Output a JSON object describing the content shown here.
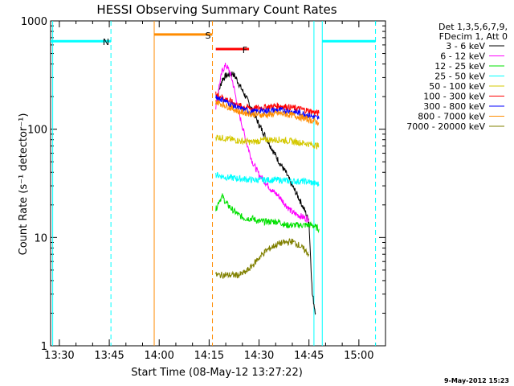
{
  "chart_data": {
    "type": "line",
    "title": "HESSI Observing Summary Count Rates",
    "xlabel": "Start Time (08-May-12 13:27:22)",
    "ylabel": "Count Rate (s⁻¹ detector⁻¹)",
    "yscale": "log",
    "ylim": [
      1,
      1000
    ],
    "xlim": [
      "13:27:22",
      "15:08:00"
    ],
    "x_ticks": [
      "13:30",
      "13:45",
      "14:00",
      "14:15",
      "14:30",
      "14:45",
      "15:00"
    ],
    "y_ticks": [
      "1",
      "10",
      "100",
      "1000"
    ],
    "legend": {
      "placement": "right",
      "header": [
        "Det 1,3,5,6,7,9,",
        "FDecim 1, Att 0"
      ],
      "entries": [
        {
          "label": "3 - 6 keV",
          "color": "#000000"
        },
        {
          "label": "6 - 12 keV",
          "color": "#ff00ff"
        },
        {
          "label": "12 - 25 keV",
          "color": "#00e000"
        },
        {
          "label": "25 - 50 keV",
          "color": "#00ffff"
        },
        {
          "label": "50 - 100 keV",
          "color": "#d4c800"
        },
        {
          "label": "100 - 300 keV",
          "color": "#ff0000"
        },
        {
          "label": "300 - 800 keV",
          "color": "#0000ff"
        },
        {
          "label": "800 - 7000 keV",
          "color": "#ff8c00"
        },
        {
          "label": "7000 - 20000 keV",
          "color": "#808000"
        }
      ]
    },
    "series": [
      {
        "name": "3 - 6 keV",
        "color": "#000000",
        "x": [
          "14:17",
          "14:18",
          "14:19",
          "14:20",
          "14:21",
          "14:22",
          "14:23",
          "14:24",
          "14:26",
          "14:28",
          "14:30",
          "14:32",
          "14:34",
          "14:36",
          "14:38",
          "14:40",
          "14:42",
          "14:44",
          "14:45",
          "14:46",
          "14:47"
        ],
        "y": [
          170,
          230,
          290,
          310,
          320,
          330,
          300,
          260,
          200,
          150,
          110,
          85,
          65,
          50,
          40,
          30,
          23,
          17,
          14,
          3,
          2
        ]
      },
      {
        "name": "6 - 12 keV",
        "color": "#ff00ff",
        "x": [
          "14:17",
          "14:18",
          "14:19",
          "14:20",
          "14:21",
          "14:22",
          "14:23",
          "14:24",
          "14:26",
          "14:28",
          "14:30",
          "14:32",
          "14:34",
          "14:36",
          "14:38",
          "14:40",
          "14:42",
          "14:44",
          "14:45"
        ],
        "y": [
          160,
          250,
          350,
          390,
          350,
          280,
          200,
          140,
          80,
          50,
          38,
          32,
          27,
          24,
          20,
          17,
          16,
          15,
          15
        ]
      },
      {
        "name": "12 - 25 keV",
        "color": "#00e000",
        "x": [
          "14:17",
          "14:18",
          "14:19",
          "14:20",
          "14:22",
          "14:24",
          "14:26",
          "14:28",
          "14:30",
          "14:32",
          "14:34",
          "14:36",
          "14:38",
          "14:40",
          "14:42",
          "14:44",
          "14:46",
          "14:48"
        ],
        "y": [
          18,
          22,
          24,
          21,
          18,
          16,
          15,
          15,
          14,
          14,
          14,
          14,
          13,
          13,
          13,
          13,
          13,
          12
        ]
      },
      {
        "name": "25 - 50 keV",
        "color": "#00ffff",
        "x": [
          "14:17",
          "14:20",
          "14:24",
          "14:28",
          "14:32",
          "14:36",
          "14:40",
          "14:44",
          "14:48"
        ],
        "y": [
          38,
          36,
          35,
          34,
          34,
          34,
          33,
          33,
          31
        ]
      },
      {
        "name": "50 - 100 keV",
        "color": "#d4c800",
        "x": [
          "14:17",
          "14:20",
          "14:24",
          "14:28",
          "14:32",
          "14:36",
          "14:40",
          "14:44",
          "14:48"
        ],
        "y": [
          85,
          82,
          78,
          76,
          80,
          80,
          77,
          74,
          70
        ]
      },
      {
        "name": "100 - 300 keV",
        "color": "#ff0000",
        "x": [
          "14:17",
          "14:20",
          "14:24",
          "14:28",
          "14:32",
          "14:36",
          "14:40",
          "14:44",
          "14:48"
        ],
        "y": [
          210,
          190,
          165,
          155,
          160,
          165,
          158,
          150,
          140
        ]
      },
      {
        "name": "300 - 800 keV",
        "color": "#0000ff",
        "x": [
          "14:17",
          "14:20",
          "14:24",
          "14:28",
          "14:32",
          "14:36",
          "14:40",
          "14:44",
          "14:48"
        ],
        "y": [
          200,
          180,
          155,
          145,
          148,
          150,
          145,
          138,
          125
        ]
      },
      {
        "name": "800 - 7000 keV",
        "color": "#ff8c00",
        "x": [
          "14:17",
          "14:20",
          "14:24",
          "14:28",
          "14:32",
          "14:36",
          "14:40",
          "14:44",
          "14:48"
        ],
        "y": [
          180,
          165,
          145,
          138,
          135,
          140,
          135,
          125,
          115
        ]
      },
      {
        "name": "7000 - 20000 keV",
        "color": "#808000",
        "x": [
          "14:17",
          "14:20",
          "14:24",
          "14:26",
          "14:28",
          "14:30",
          "14:32",
          "14:34",
          "14:36",
          "14:38",
          "14:40",
          "14:42",
          "14:44",
          "14:45"
        ],
        "y": [
          4.5,
          4.5,
          4.5,
          4.8,
          5.5,
          6.5,
          7.5,
          8.2,
          8.8,
          9.0,
          9.2,
          8.5,
          7.5,
          7.0
        ]
      }
    ],
    "flags": [
      {
        "label": "N",
        "color": "#00ffff",
        "intervals": [
          [
            "13:27:22",
            "13:45:30"
          ],
          [
            "14:49:00",
            "15:05:00"
          ]
        ],
        "value": 650
      },
      {
        "label": "S",
        "color": "#ff8c00",
        "intervals": [
          [
            "13:58:30",
            "14:16:00"
          ]
        ],
        "value": 750
      },
      {
        "label": "F",
        "color": "#ff0000",
        "intervals": [
          [
            "14:17:00",
            "14:27:00"
          ]
        ],
        "value": 550
      }
    ],
    "markers": [
      {
        "x": "13:28:00",
        "color": "#00ffff",
        "style": "solid"
      },
      {
        "x": "13:45:30",
        "color": "#00ffff",
        "style": "dashed"
      },
      {
        "x": "13:58:30",
        "color": "#ff8c00",
        "style": "solid"
      },
      {
        "x": "14:16:00",
        "color": "#ff8c00",
        "style": "dashed"
      },
      {
        "x": "14:46:30",
        "color": "#00ffff",
        "style": "solid"
      },
      {
        "x": "14:49:00",
        "color": "#00ffff",
        "style": "solid"
      },
      {
        "x": "15:05:00",
        "color": "#00ffff",
        "style": "dashed"
      }
    ]
  },
  "footer": {
    "timestamp": "9-May-2012 15:23"
  }
}
